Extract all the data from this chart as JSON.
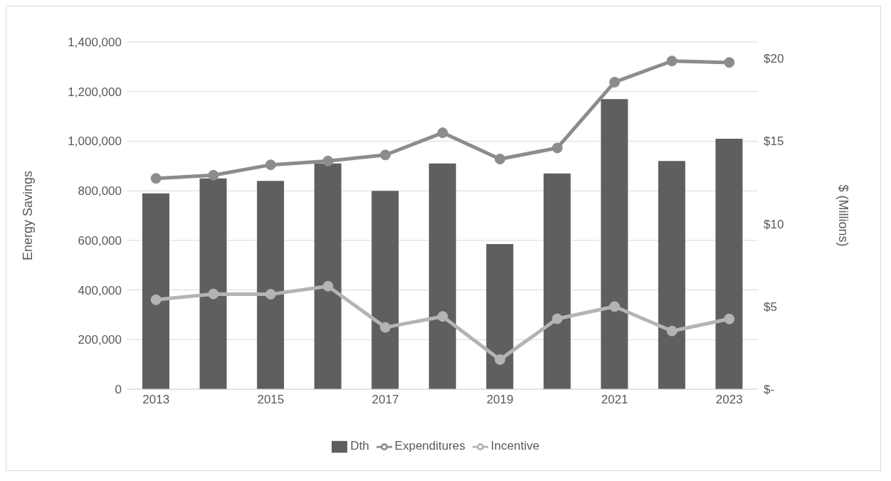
{
  "chart_data": {
    "type": "bar",
    "categories": [
      "2013",
      null,
      "2015",
      null,
      "2017",
      null,
      "2019",
      null,
      "2021",
      null,
      "2023"
    ],
    "series": [
      {
        "name": "Dth",
        "color": "#5f5f5f",
        "values": [
          790000,
          850000,
          840000,
          910000,
          800000,
          910000,
          585000,
          870000,
          1170000,
          920000,
          1010000
        ]
      },
      {
        "name": "Expenditures",
        "type": "line",
        "axis": "y2",
        "color": "#8c8c8c",
        "values": [
          12.75,
          12.94,
          13.57,
          13.8,
          14.17,
          15.51,
          13.92,
          14.59,
          18.57,
          19.85,
          19.76
        ]
      },
      {
        "name": "Incentive",
        "type": "line",
        "axis": "y2",
        "color": "#b4b4b4",
        "values": [
          5.41,
          5.76,
          5.74,
          6.23,
          3.74,
          4.4,
          1.79,
          4.26,
          5.0,
          3.52,
          4.25
        ]
      }
    ],
    "ylabel": "Energy Savings",
    "y2label": "$ (Millions)",
    "ylim": [
      0,
      1400000
    ],
    "yticks": [
      {
        "value": 0,
        "label": "0"
      },
      {
        "value": 200000,
        "label": "200,000"
      },
      {
        "value": 400000,
        "label": "400,000"
      },
      {
        "value": 600000,
        "label": "600,000"
      },
      {
        "value": 800000,
        "label": "800,000"
      },
      {
        "value": 1000000,
        "label": "1,000,000"
      },
      {
        "value": 1200000,
        "label": "1,200,000"
      },
      {
        "value": 1400000,
        "label": "1,400,000"
      }
    ],
    "y2lim": [
      0,
      21
    ],
    "y2ticks": [
      {
        "value": 0,
        "label": "$-"
      },
      {
        "value": 5,
        "label": "$5"
      },
      {
        "value": 10,
        "label": "$10"
      },
      {
        "value": 15,
        "label": "$15"
      },
      {
        "value": 20,
        "label": "$20"
      }
    ],
    "grid": "y",
    "legend": "bottom",
    "marker": "circle"
  }
}
